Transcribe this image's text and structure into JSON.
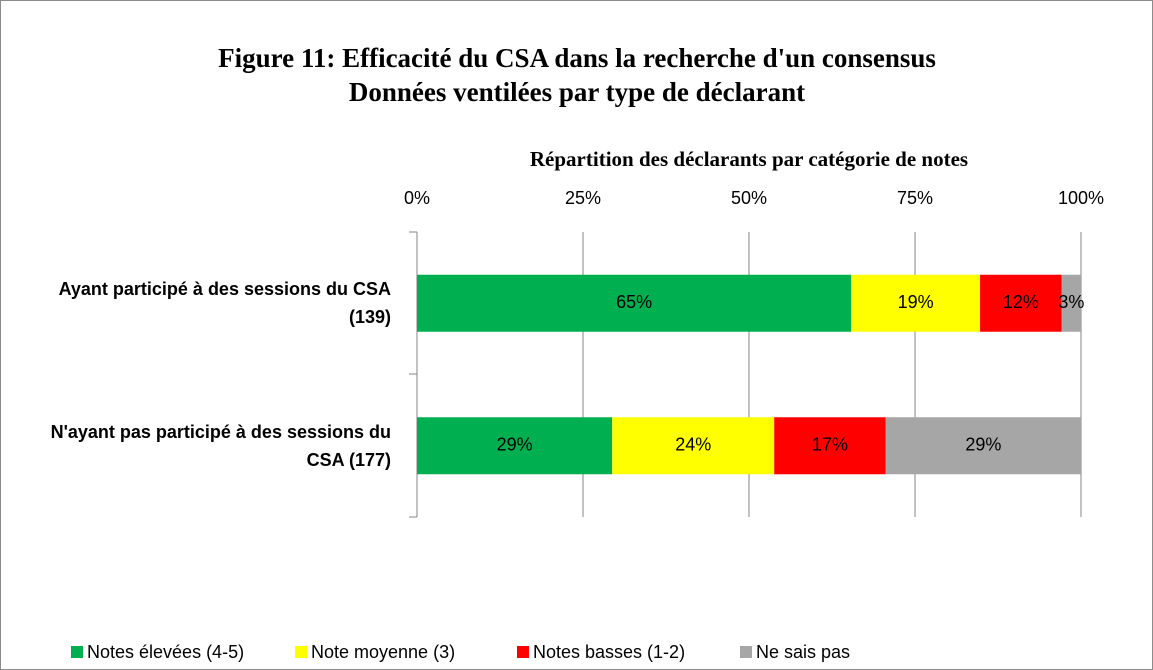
{
  "chart_data": {
    "type": "stacked-bar-horizontal",
    "title": "Figure 11:  Efficacité du CSA dans la recherche d'un consensus",
    "subtitle": "Données ventilées par type de déclarant",
    "x_label": "Répartition des déclarants par catégorie de notes",
    "categories": [
      "Ayant participé à des sessions du CSA (139)",
      "N'ayant pas participé à des sessions du CSA (177)"
    ],
    "series": [
      {
        "name": "Notes élevées (4-5)",
        "color": "#00b050",
        "values": [
          65.4,
          29.4
        ],
        "value_labels": [
          "65%",
          "29%"
        ]
      },
      {
        "name": "Note moyenne (3)",
        "color": "#ffff00",
        "values": [
          19.4,
          24.4
        ],
        "value_labels": [
          "19%",
          "24%"
        ]
      },
      {
        "name": "Notes basses (1-2)",
        "color": "#ff0000",
        "values": [
          12.3,
          16.8
        ],
        "value_labels": [
          "12%",
          "17%"
        ]
      },
      {
        "name": "Ne sais pas",
        "color": "#a6a6a6",
        "values": [
          2.9,
          29.4
        ],
        "value_labels": [
          "3%",
          "29%"
        ]
      }
    ],
    "xlim": [
      0,
      100
    ],
    "xticks": [
      {
        "value": 0,
        "label": "0%"
      },
      {
        "value": 25,
        "label": "25%"
      },
      {
        "value": 50,
        "label": "50%"
      },
      {
        "value": 75,
        "label": "75%"
      },
      {
        "value": 100,
        "label": "100%"
      }
    ],
    "grid": true,
    "legend": "bottom"
  }
}
